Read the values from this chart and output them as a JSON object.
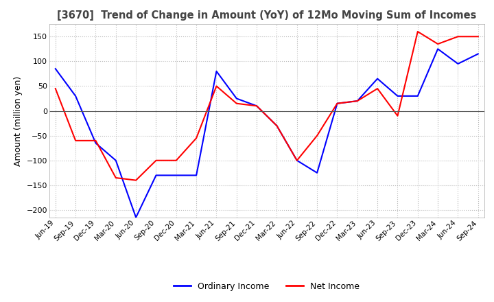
{
  "title": "[3670]  Trend of Change in Amount (YoY) of 12Mo Moving Sum of Incomes",
  "ylabel": "Amount (million yen)",
  "ylim": [
    -215,
    175
  ],
  "yticks": [
    -200,
    -150,
    -100,
    -50,
    0,
    50,
    100,
    150
  ],
  "legend_labels": [
    "Ordinary Income",
    "Net Income"
  ],
  "line_colors": [
    "#0000ff",
    "#ff0000"
  ],
  "x_labels": [
    "Jun-19",
    "Sep-19",
    "Dec-19",
    "Mar-20",
    "Jun-20",
    "Sep-20",
    "Dec-20",
    "Mar-21",
    "Jun-21",
    "Sep-21",
    "Dec-21",
    "Mar-22",
    "Jun-22",
    "Sep-22",
    "Dec-22",
    "Mar-23",
    "Jun-23",
    "Sep-23",
    "Dec-23",
    "Mar-24",
    "Jun-24",
    "Sep-24"
  ],
  "ordinary_income": [
    85,
    30,
    -65,
    -100,
    -215,
    -130,
    -130,
    -130,
    80,
    25,
    10,
    -30,
    -100,
    -125,
    15,
    20,
    65,
    30,
    30,
    125,
    95,
    115
  ],
  "net_income": [
    45,
    -60,
    -60,
    -135,
    -140,
    -100,
    -100,
    -55,
    50,
    15,
    10,
    -30,
    -100,
    -50,
    15,
    20,
    45,
    -10,
    160,
    135,
    150,
    150
  ],
  "background_color": "#ffffff",
  "grid_color": "#bbbbbb"
}
